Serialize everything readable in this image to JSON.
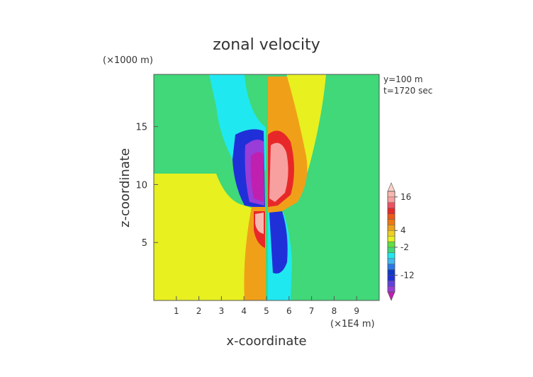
{
  "chart_data": {
    "type": "heatmap",
    "title": "zonal velocity",
    "xlabel": "x-coordinate",
    "ylabel": "z-coordinate",
    "x_unit": "(×1E4 m)",
    "y_unit": "(×1000 m)",
    "annotations": [
      "y=100 m",
      "t=1720 sec"
    ],
    "xlim": [
      0,
      10
    ],
    "ylim": [
      0,
      19.5
    ],
    "x_ticks": [
      1,
      2,
      3,
      4,
      5,
      6,
      7,
      8,
      9
    ],
    "y_ticks": [
      5,
      10,
      15
    ],
    "colorbar": {
      "ticks": [
        16,
        4,
        -2,
        -12
      ],
      "levels": [
        -20,
        -18,
        -16,
        -14,
        -12,
        -10,
        -8,
        -6,
        -4,
        -2,
        0,
        2,
        4,
        6,
        8,
        10,
        12,
        14,
        16,
        18,
        20
      ],
      "colors": [
        "#c020b0",
        "#9a3cd8",
        "#6040e0",
        "#2030d8",
        "#1038c8",
        "#2878e8",
        "#40b8f0",
        "#20e8f0",
        "#40d878",
        "#60e040",
        "#e8f020",
        "#f0d020",
        "#f0a018",
        "#f07810",
        "#f05818",
        "#e82828",
        "#f05060",
        "#f8a0a0",
        "#f8b8b0",
        "#fcd0c8"
      ]
    },
    "grid": false,
    "legend": "colorbar-right"
  }
}
